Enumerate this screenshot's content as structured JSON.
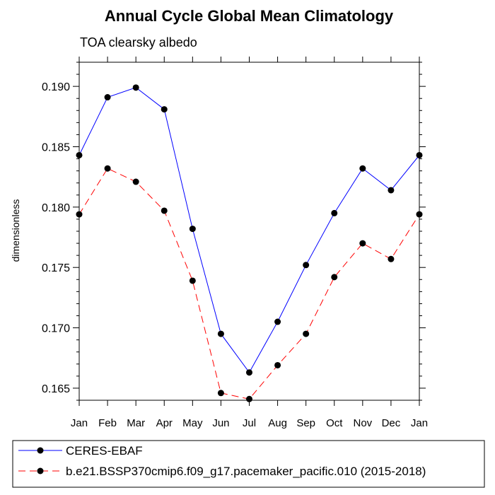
{
  "chart_data": {
    "type": "line",
    "title": "Annual Cycle Global Mean Climatology",
    "subtitle": "TOA clearsky albedo",
    "ylabel": "dimensionless",
    "xlabel": "",
    "categories": [
      "Jan",
      "Feb",
      "Mar",
      "Apr",
      "May",
      "Jun",
      "Jul",
      "Aug",
      "Sep",
      "Oct",
      "Nov",
      "Dec",
      "Jan"
    ],
    "ylim": [
      0.164,
      0.192
    ],
    "yticks": [
      0.165,
      0.17,
      0.175,
      0.18,
      0.185,
      0.19
    ],
    "ytick_labels": [
      "0.165",
      "0.170",
      "0.175",
      "0.180",
      "0.185",
      "0.190"
    ],
    "legend_position": "bottom",
    "series": [
      {
        "name": "CERES-EBAF",
        "color": "#0000ff",
        "dash": "solid",
        "marker": "filled-circle",
        "values": [
          0.1843,
          0.1891,
          0.1899,
          0.1881,
          0.1782,
          0.1695,
          0.1663,
          0.1705,
          0.1752,
          0.1795,
          0.1832,
          0.1814,
          0.1843
        ]
      },
      {
        "name": "b.e21.BSSP370cmip6.f09_g17.pacemaker_pacific.010 (2015-2018)",
        "color": "#ff0000",
        "dash": "dashed",
        "marker": "filled-circle",
        "values": [
          0.1794,
          0.1832,
          0.1821,
          0.1797,
          0.1739,
          0.1646,
          0.1641,
          0.1669,
          0.1695,
          0.1742,
          0.177,
          0.1757,
          0.1794
        ]
      }
    ]
  }
}
